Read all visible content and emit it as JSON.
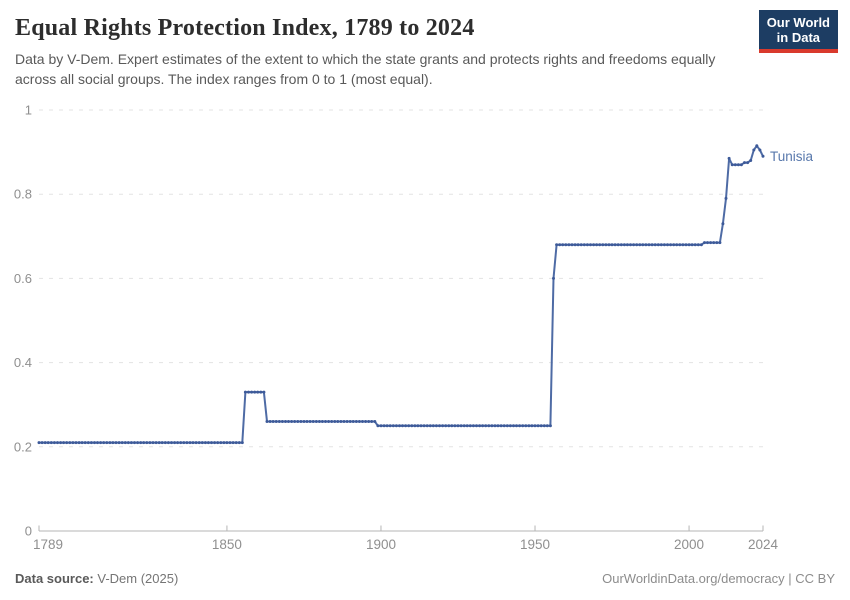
{
  "header": {
    "title": "Equal Rights Protection Index, 1789 to 2024",
    "subtitle": "Data by V-Dem. Expert estimates of the extent to which the state grants and protects rights and freedoms equally across all social groups. The index ranges from 0 to 1 (most equal)."
  },
  "logo": {
    "line1": "Our World",
    "line2": "in Data"
  },
  "footer": {
    "source_label": "Data source:",
    "source_value": "V-Dem (2025)",
    "right_text": "OurWorldinData.org/democracy | CC BY"
  },
  "colors": {
    "line": "#4e6ba5",
    "marker": "#3d5a99",
    "entity_label": "#5878ac",
    "gridline": "#e3e3e3",
    "axis": "#b5b5b5",
    "tick_label": "#8f8f8f",
    "logo_bg": "#1d3d63",
    "logo_red": "#d93a2d"
  },
  "chart_data": {
    "type": "line",
    "title": "Equal Rights Protection Index, 1789 to 2024",
    "entity": "Tunisia",
    "xlabel": "",
    "ylabel": "",
    "x_range": [
      1789,
      2024
    ],
    "y_range": [
      0,
      1
    ],
    "x_ticks": [
      1789,
      1850,
      1900,
      1950,
      2000,
      2024
    ],
    "y_ticks": [
      0,
      0.2,
      0.4,
      0.6,
      0.8,
      1
    ],
    "grid": "dashed-horizontal",
    "legend": "entity-label-at-line-end",
    "series": [
      {
        "name": "Tunisia",
        "points": [
          [
            1789,
            0.21
          ],
          [
            1855,
            0.21
          ],
          [
            1856,
            0.33
          ],
          [
            1862,
            0.33
          ],
          [
            1863,
            0.26
          ],
          [
            1898,
            0.26
          ],
          [
            1899,
            0.25
          ],
          [
            1955,
            0.25
          ],
          [
            1956,
            0.6
          ],
          [
            1957,
            0.68
          ],
          [
            2004,
            0.68
          ],
          [
            2005,
            0.685
          ],
          [
            2010,
            0.685
          ],
          [
            2011,
            0.73
          ],
          [
            2012,
            0.79
          ],
          [
            2013,
            0.885
          ],
          [
            2014,
            0.87
          ],
          [
            2015,
            0.87
          ],
          [
            2016,
            0.87
          ],
          [
            2017,
            0.87
          ],
          [
            2018,
            0.875
          ],
          [
            2019,
            0.875
          ],
          [
            2020,
            0.88
          ],
          [
            2021,
            0.905
          ],
          [
            2022,
            0.915
          ],
          [
            2023,
            0.905
          ],
          [
            2024,
            0.89
          ]
        ]
      }
    ]
  }
}
